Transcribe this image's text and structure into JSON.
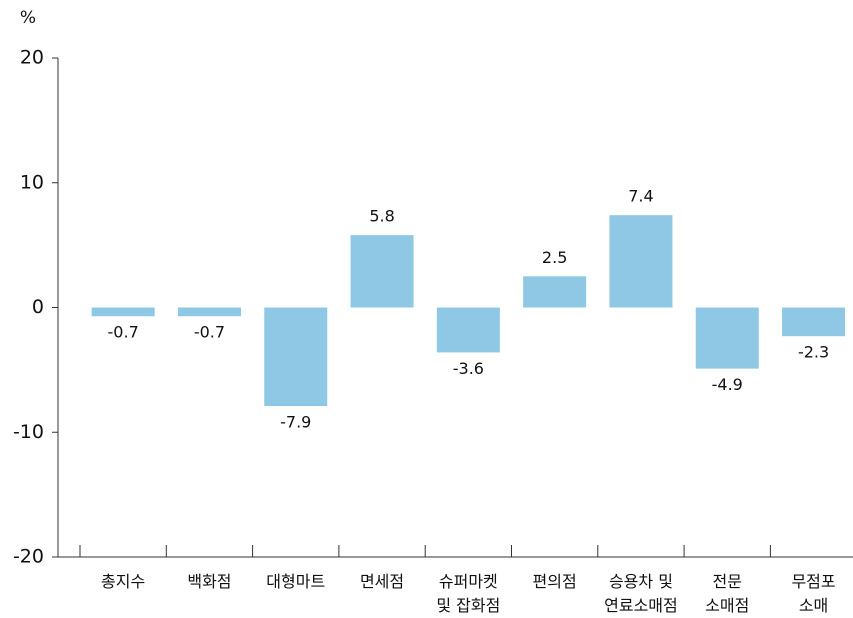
{
  "chart_data": {
    "type": "bar",
    "y_label": "%",
    "categories": [
      "총지수",
      "백화점",
      "대형마트",
      "면세점",
      "슈퍼마켓\n및 잡화점",
      "편의점",
      "승용차 및\n연료소매점",
      "전문\n소매점",
      "무점포\n소매"
    ],
    "values": [
      -0.7,
      -0.7,
      -7.9,
      5.8,
      -3.6,
      2.5,
      7.4,
      -4.9,
      -2.3
    ],
    "color": "#8ec8e4",
    "ylim": [
      -20,
      20
    ],
    "yticks": [
      -20,
      -10,
      0,
      10,
      20
    ],
    "grid": false
  }
}
